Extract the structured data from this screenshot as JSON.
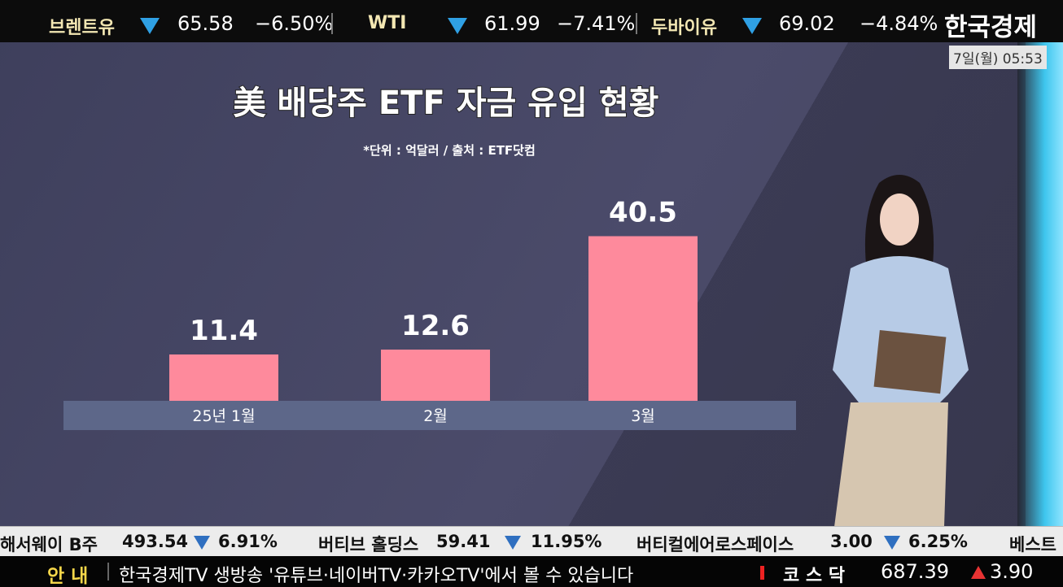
{
  "top_ticker": {
    "items": [
      {
        "name": "브렌트유",
        "price": "65.58",
        "change": "−6.50%"
      },
      {
        "name": "WTI",
        "price": "61.99",
        "change": "−7.41%"
      },
      {
        "name": "두바이유",
        "price": "69.02",
        "change": "−4.84%"
      }
    ],
    "logo": "한국경제",
    "datetime": "7일(월) 05:53"
  },
  "chart_data": {
    "type": "bar",
    "title": "美 배당주 ETF 자금 유입 현황",
    "subtitle": "*단위 : 억달러 / 출처 : ETF닷컴",
    "categories": [
      "25년 1월",
      "2월",
      "3월"
    ],
    "values": [
      11.4,
      12.6,
      40.5
    ],
    "color": "#fe8a9c"
  },
  "bottom_ticker": {
    "items": [
      {
        "name": "해서웨이 B주",
        "price": "493.54",
        "change": "6.91%"
      },
      {
        "name": "버티브 홀딩스",
        "price": "59.41",
        "change": "11.95%"
      },
      {
        "name": "버티컬에어로스페이스",
        "price": "3.00",
        "change": "6.25%"
      }
    ],
    "cut": "베스트"
  },
  "news_bar": {
    "label": "안 내",
    "text": "한국경제TV 생방송 '유튜브·네이버TV·카카오TV'에서 볼 수 있습니다",
    "index_name": "코 스 닥",
    "index_value": "687.39",
    "index_change": "3.90"
  }
}
